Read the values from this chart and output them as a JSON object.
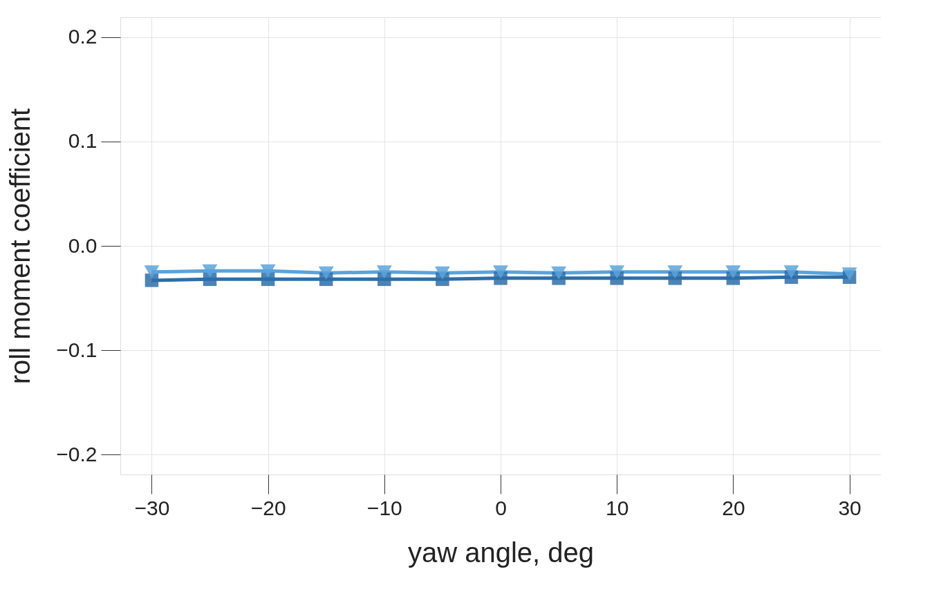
{
  "chart_data": {
    "type": "line",
    "xlabel": "yaw angle, deg",
    "ylabel": "roll moment coefficient",
    "x": [
      -30,
      -25,
      -20,
      -15,
      -10,
      -5,
      0,
      5,
      10,
      15,
      20,
      25,
      30
    ],
    "series": [
      {
        "color": "#5aa3dc",
        "marker": "triangle",
        "values": [
          -0.025,
          -0.024,
          -0.024,
          -0.026,
          -0.025,
          -0.026,
          -0.025,
          -0.026,
          -0.025,
          -0.025,
          -0.025,
          -0.025,
          -0.027
        ]
      },
      {
        "color": "#2e6ea8",
        "marker": "square",
        "values": [
          -0.033,
          -0.032,
          -0.032,
          -0.032,
          -0.032,
          -0.032,
          -0.031,
          -0.031,
          -0.031,
          -0.031,
          -0.031,
          -0.03,
          -0.03
        ]
      }
    ],
    "xlim": [
      -32.7,
      32.7
    ],
    "ylim": [
      -0.219,
      0.219
    ],
    "xticks": [
      -30,
      -20,
      -10,
      0,
      10,
      20,
      30
    ],
    "yticks": [
      -0.2,
      -0.1,
      {
        "value": 0,
        "label": "0.0"
      },
      0.1,
      0.2
    ],
    "grid": true,
    "line_style": "solid"
  }
}
